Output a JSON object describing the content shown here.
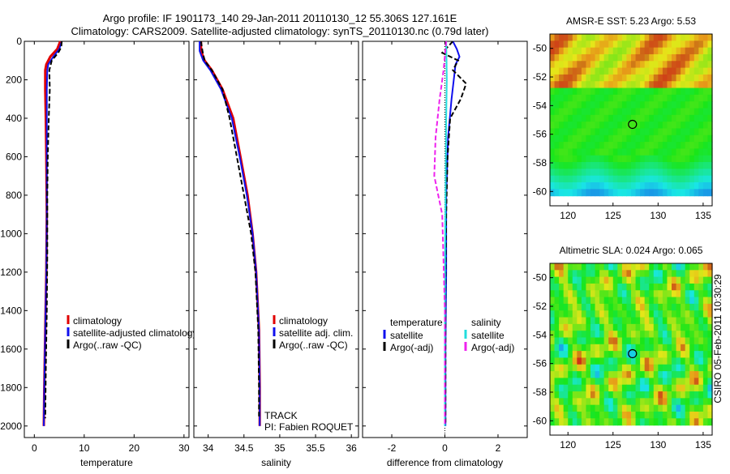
{
  "header": {
    "title_line1": "Argo profile: IF 1901173_140 29-Jan-2011 20110130_12 55.306S 127.161E",
    "title_line2": "Climatology: CARS2009. Satellite-adjusted climatology: synTS_20110130.nc (0.79d later)"
  },
  "colors": {
    "climatology": "#e00000",
    "satellite": "#1010ee",
    "argo": "#000000",
    "salinity_diff": "#22dddd",
    "argo_adj_sal": "#ee22ee"
  },
  "chart_data": [
    {
      "type": "line",
      "id": "temperature",
      "xlabel": "temperature",
      "ylabel": "",
      "xlim": [
        -2,
        31
      ],
      "ylim": [
        2060,
        0
      ],
      "xticks": [
        0,
        10,
        20,
        30
      ],
      "yticks": [
        0,
        200,
        400,
        600,
        800,
        1000,
        1200,
        1400,
        1600,
        1800,
        2000
      ],
      "legend": [
        "climatology",
        "satellite-adjusted climatology",
        "Argo(..raw -QC)"
      ],
      "series": [
        {
          "name": "climatology",
          "x": [
            5.2,
            4.6,
            3.2,
            2.4,
            2.2,
            2.2,
            2.3,
            2.4,
            2.5,
            2.4,
            2.2,
            2.0,
            1.9
          ],
          "y": [
            0,
            40,
            80,
            120,
            150,
            250,
            400,
            600,
            900,
            1200,
            1500,
            1800,
            2000
          ]
        },
        {
          "name": "satellite-adjusted climatology",
          "x": [
            5.5,
            5.0,
            3.8,
            2.8,
            2.6,
            2.5,
            2.5,
            2.5,
            2.5,
            2.4,
            2.2,
            2.0,
            1.9
          ],
          "y": [
            0,
            40,
            80,
            120,
            150,
            250,
            400,
            600,
            900,
            1200,
            1500,
            1800,
            2000
          ]
        },
        {
          "name": "Argo(..raw -QC)",
          "x": [
            5.5,
            5.4,
            4.8,
            3.5,
            3.0,
            3.1,
            2.9,
            2.7,
            2.6,
            2.6,
            2.5,
            2.3,
            2.2
          ],
          "y": [
            0,
            30,
            60,
            100,
            150,
            250,
            400,
            600,
            800,
            1100,
            1400,
            1700,
            1960
          ]
        }
      ]
    },
    {
      "type": "line",
      "id": "salinity",
      "xlabel": "salinity",
      "xlim": [
        33.8,
        36.1
      ],
      "ylim": [
        2060,
        0
      ],
      "xticks": [
        34,
        34.5,
        35,
        35.5,
        36
      ],
      "yticks": [
        0,
        200,
        400,
        600,
        800,
        1000,
        1200,
        1400,
        1600,
        1800,
        2000
      ],
      "legend": [
        "climatology",
        "satellite adj. clim.",
        "Argo(..raw -QC)"
      ],
      "annotations": [
        "TRACK",
        "PI: Fabien ROQUET"
      ],
      "series": [
        {
          "name": "climatology",
          "x": [
            33.9,
            33.9,
            33.95,
            34.05,
            34.2,
            34.35,
            34.45,
            34.55,
            34.62,
            34.67,
            34.71,
            34.72,
            34.72
          ],
          "y": [
            0,
            50,
            100,
            150,
            250,
            400,
            600,
            800,
            1000,
            1200,
            1500,
            1800,
            2000
          ]
        },
        {
          "name": "satellite adj. clim.",
          "x": [
            33.88,
            33.88,
            33.93,
            34.03,
            34.18,
            34.33,
            34.44,
            34.54,
            34.62,
            34.67,
            34.71,
            34.72,
            34.72
          ],
          "y": [
            0,
            50,
            100,
            150,
            250,
            400,
            600,
            800,
            1000,
            1200,
            1500,
            1800,
            2000
          ]
        },
        {
          "name": "Argo(..raw -QC)",
          "x": [
            33.9,
            33.92,
            33.95,
            34.05,
            34.2,
            34.3,
            34.4,
            34.5,
            34.6,
            34.66,
            34.7,
            34.71,
            34.71
          ],
          "y": [
            0,
            50,
            100,
            150,
            250,
            400,
            600,
            800,
            1000,
            1200,
            1500,
            1800,
            1950
          ]
        }
      ]
    },
    {
      "type": "line",
      "id": "difference",
      "xlabel": "difference from climatology",
      "xlim": [
        -3.1,
        3.1
      ],
      "ylim": [
        2060,
        0
      ],
      "xticks": [
        -2,
        0,
        2
      ],
      "yticks": [
        0,
        200,
        400,
        600,
        800,
        1000,
        1200,
        1400,
        1600,
        1800,
        2000
      ],
      "legend_titles": [
        "temperature",
        "salinity"
      ],
      "legend": [
        "satellite",
        "Argo(-adj)",
        "satellite",
        "Argo(-adj)"
      ],
      "series": [
        {
          "name": "temperature satellite",
          "x": [
            0.3,
            0.45,
            0.55,
            0.4,
            0.35,
            0.25,
            0.12,
            0.05,
            0.05,
            0.02,
            0.02
          ],
          "y": [
            0,
            40,
            80,
            120,
            180,
            300,
            500,
            800,
            1200,
            1600,
            2000
          ]
        },
        {
          "name": "temperature Argo(-adj)",
          "x": [
            0.3,
            -0.1,
            0.5,
            0.3,
            0.8,
            0.6,
            0.2,
            0.1,
            0.05,
            0.02,
            0.02,
            0.02
          ],
          "y": [
            0,
            60,
            100,
            150,
            220,
            300,
            400,
            600,
            900,
            1300,
            1700,
            1990
          ]
        },
        {
          "name": "salinity satellite",
          "x": [
            0.05,
            0.06,
            0.07,
            0.05,
            0.03,
            0.01,
            0.0,
            0.0
          ],
          "y": [
            0,
            100,
            200,
            400,
            700,
            1100,
            1600,
            2000
          ]
        },
        {
          "name": "salinity Argo(-adj)",
          "x": [
            0.05,
            -0.05,
            -0.2,
            -0.35,
            -0.4,
            -0.1,
            0.0,
            0.0
          ],
          "y": [
            0,
            150,
            300,
            500,
            700,
            900,
            1400,
            1990
          ]
        }
      ]
    },
    {
      "type": "heatmap",
      "id": "sst",
      "title": "AMSR-E SST: 5.23 Argo: 5.53",
      "xlim": [
        118,
        136
      ],
      "ylim": [
        -61,
        -49
      ],
      "xticks": [
        120,
        125,
        130,
        135
      ],
      "yticks": [
        -50,
        -52,
        -54,
        -56,
        -58,
        -60
      ],
      "marker": {
        "lon": 127.16,
        "lat": -55.31
      }
    },
    {
      "type": "heatmap",
      "id": "sla",
      "title": "Altimetric SLA: 0.024 Argo: 0.065",
      "xlim": [
        118,
        136
      ],
      "ylim": [
        -61,
        -49
      ],
      "xticks": [
        120,
        125,
        130,
        135
      ],
      "yticks": [
        -50,
        -52,
        -54,
        -56,
        -58,
        -60
      ],
      "marker": {
        "lon": 127.16,
        "lat": -55.31
      }
    }
  ],
  "footer": {
    "side_label": "CSIRO 05-Feb-2011 10:30:29"
  }
}
